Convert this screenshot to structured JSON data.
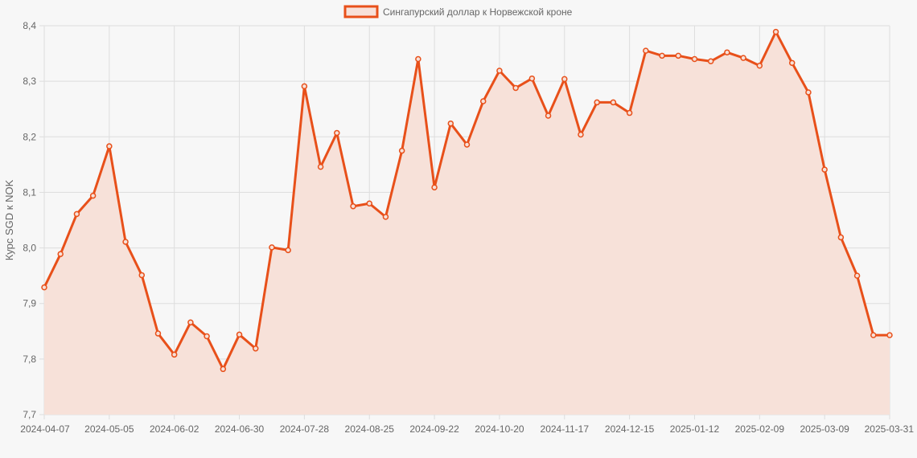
{
  "chart_data": {
    "type": "line",
    "title": "",
    "legend": {
      "label": "Сингапурский доллар к Норвежской кроне",
      "position": "top"
    },
    "ylabel": "Курс SGD к NOK",
    "xlabel": "",
    "ylim": [
      7.7,
      8.4
    ],
    "y_ticks": [
      "7,7",
      "7,8",
      "7,9",
      "8,0",
      "8,1",
      "8,2",
      "8,3",
      "8,4"
    ],
    "x_tick_labels": [
      "2024-04-07",
      "2024-05-05",
      "2024-06-02",
      "2024-06-30",
      "2024-07-28",
      "2024-08-25",
      "2024-09-22",
      "2024-10-20",
      "2024-11-17",
      "2024-12-15",
      "2025-01-12",
      "2025-02-09",
      "2025-03-09",
      "2025-03-31"
    ],
    "grid": true,
    "fill": true,
    "colors": {
      "line": "#e8501a",
      "fill": "#f7e1d9",
      "grid": "#dddddd",
      "background": "#f7f7f7"
    },
    "series": [
      {
        "name": "Сингапурский доллар к Норвежской кроне",
        "values": [
          7.929,
          7.989,
          8.061,
          8.094,
          8.183,
          8.011,
          7.951,
          7.846,
          7.808,
          7.866,
          7.841,
          7.782,
          7.844,
          7.819,
          8.001,
          7.996,
          8.291,
          8.146,
          8.207,
          8.075,
          8.08,
          8.056,
          8.175,
          8.34,
          8.109,
          8.224,
          8.186,
          8.264,
          8.319,
          8.288,
          8.305,
          8.238,
          8.304,
          8.204,
          8.262,
          8.262,
          8.243,
          8.355,
          8.346,
          8.346,
          8.34,
          8.336,
          8.352,
          8.342,
          8.328,
          8.389,
          8.333,
          8.28,
          8.141,
          8.019,
          7.95,
          7.843,
          7.843
        ]
      }
    ]
  }
}
